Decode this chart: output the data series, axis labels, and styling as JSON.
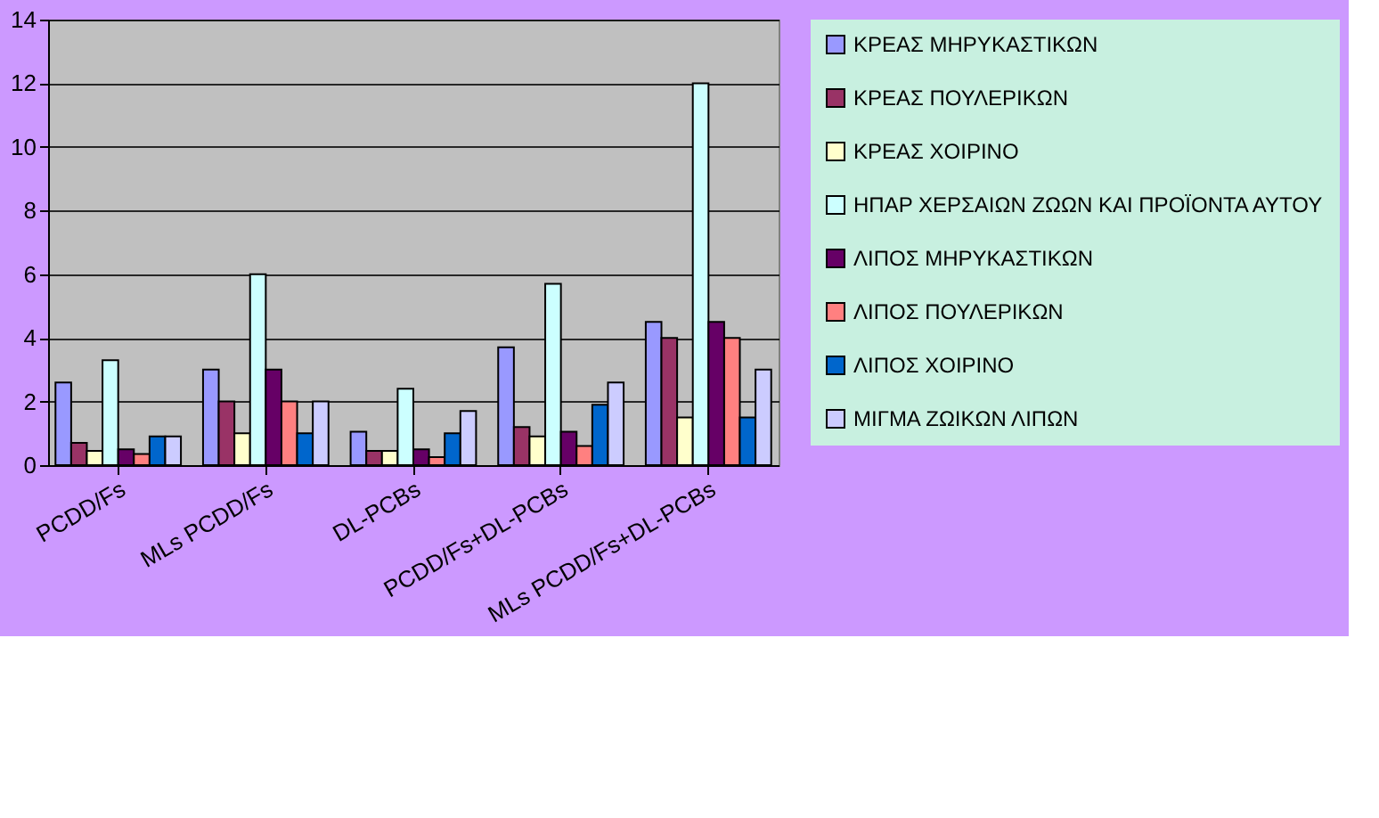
{
  "chart_data": {
    "type": "bar",
    "categories": [
      "PCDD/Fs",
      "MLs PCDD/Fs",
      "DL-PCBs",
      "PCDD/Fs+DL-PCBs",
      "MLs PCDD/Fs+DL-PCBs"
    ],
    "ylim": [
      0,
      14
    ],
    "yticks": [
      0,
      2,
      4,
      6,
      8,
      10,
      12,
      14
    ],
    "grid": "y",
    "legend": "right",
    "series": [
      {
        "name": "ΚΡΕΑΣ ΜΗΡΥΚΑΣΤΙΚΩΝ",
        "color": "#9999ff",
        "values": [
          2.6,
          3.0,
          1.05,
          3.7,
          4.5
        ]
      },
      {
        "name": "ΚΡΕΑΣ ΠΟΥΛΕΡΙΚΩΝ",
        "color": "#993366",
        "values": [
          0.7,
          2.0,
          0.45,
          1.2,
          4.0
        ]
      },
      {
        "name": "ΚΡΕΑΣ ΧΟΙΡΙΝΟ",
        "color": "#ffffcc",
        "values": [
          0.45,
          1.0,
          0.45,
          0.9,
          1.5
        ]
      },
      {
        "name": "ΗΠΑΡ ΧΕΡΣΑΙΩΝ ΖΩΩΝ ΚΑΙ ΠΡΟΪΟΝΤΑ ΑΥΤΟΥ",
        "color": "#ccffff",
        "values": [
          3.3,
          6.0,
          2.4,
          5.7,
          12.0
        ]
      },
      {
        "name": "ΛΙΠΟΣ ΜΗΡΥΚΑΣΤΙΚΩΝ",
        "color": "#660066",
        "values": [
          0.5,
          3.0,
          0.5,
          1.05,
          4.5
        ]
      },
      {
        "name": "ΛΙΠΟΣ ΠΟΥΛΕΡΙΚΩΝ",
        "color": "#ff8080",
        "values": [
          0.35,
          2.0,
          0.25,
          0.6,
          4.0
        ]
      },
      {
        "name": "ΛΙΠΟΣ ΧΟΙΡΙΝΟ",
        "color": "#0066cc",
        "values": [
          0.9,
          1.0,
          1.0,
          1.9,
          1.5
        ]
      },
      {
        "name": "ΜΙΓΜΑ ΖΩΙΚΩΝ ΛΙΠΩΝ",
        "color": "#ccccff",
        "values": [
          0.9,
          2.0,
          1.7,
          2.6,
          3.0
        ]
      }
    ]
  }
}
